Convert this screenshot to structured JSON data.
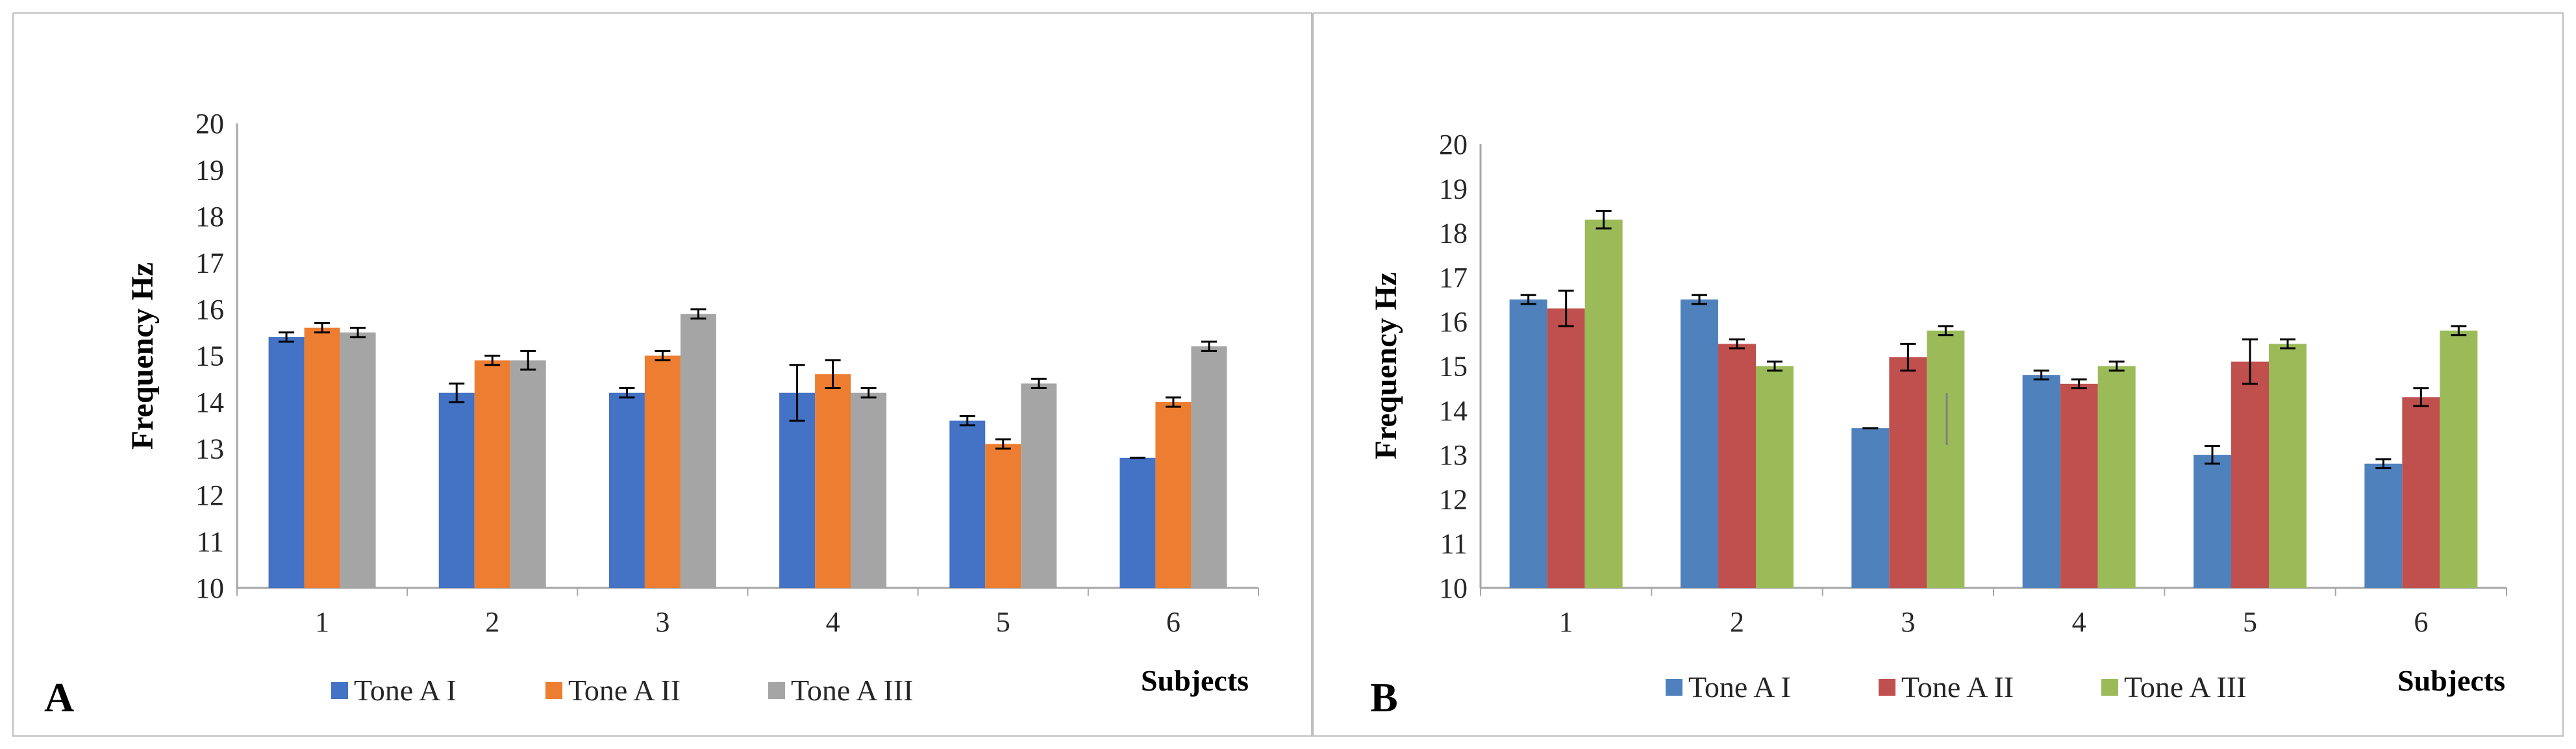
{
  "chart_data": [
    {
      "type": "bar",
      "panel_label": "A",
      "categories": [
        "1",
        "2",
        "3",
        "4",
        "5",
        "6"
      ],
      "xlabel": "Subjects",
      "ylabel": "Frequency Hz",
      "ylim": [
        10,
        20
      ],
      "yticks": [
        "10",
        "11",
        "12",
        "13",
        "14",
        "15",
        "16",
        "17",
        "18",
        "19",
        "20"
      ],
      "legend_position": "bottom",
      "series": [
        {
          "name": "Tone A I",
          "color": "#4472C4",
          "values": [
            15.4,
            14.2,
            14.2,
            14.2,
            13.6,
            12.8
          ],
          "errors": [
            0.1,
            0.2,
            0.1,
            0.6,
            0.1,
            0.0
          ]
        },
        {
          "name": "Tone A II",
          "color": "#ED7D31",
          "values": [
            15.6,
            14.9,
            15.0,
            14.6,
            13.1,
            14.0
          ],
          "errors": [
            0.1,
            0.1,
            0.1,
            0.3,
            0.1,
            0.1
          ]
        },
        {
          "name": "Tone A III",
          "color": "#A5A5A5",
          "values": [
            15.5,
            14.9,
            15.9,
            14.2,
            14.4,
            15.2
          ],
          "errors": [
            0.1,
            0.2,
            0.1,
            0.1,
            0.1,
            0.1
          ]
        }
      ]
    },
    {
      "type": "bar",
      "panel_label": "B",
      "categories": [
        "1",
        "2",
        "3",
        "4",
        "5",
        "6"
      ],
      "xlabel": "Subjects",
      "ylabel": "Frequency Hz",
      "ylim": [
        10,
        20
      ],
      "yticks": [
        "10",
        "11",
        "12",
        "13",
        "14",
        "15",
        "16",
        "17",
        "18",
        "19",
        "20"
      ],
      "legend_position": "bottom",
      "series": [
        {
          "name": "Tone A I",
          "color": "#4F81BD",
          "values": [
            16.5,
            16.5,
            13.6,
            14.8,
            13.0,
            12.8
          ],
          "errors": [
            0.1,
            0.1,
            0.0,
            0.1,
            0.2,
            0.1
          ]
        },
        {
          "name": "Tone A II",
          "color": "#C0504D",
          "values": [
            16.3,
            15.5,
            15.2,
            14.6,
            15.1,
            14.3
          ],
          "errors": [
            0.4,
            0.1,
            0.3,
            0.1,
            0.5,
            0.2
          ]
        },
        {
          "name": "Tone A III",
          "color": "#9BBB59",
          "values": [
            18.3,
            15.0,
            15.8,
            15.0,
            15.5,
            15.8
          ],
          "errors": [
            0.2,
            0.1,
            0.1,
            0.1,
            0.1,
            0.1
          ]
        }
      ]
    }
  ]
}
